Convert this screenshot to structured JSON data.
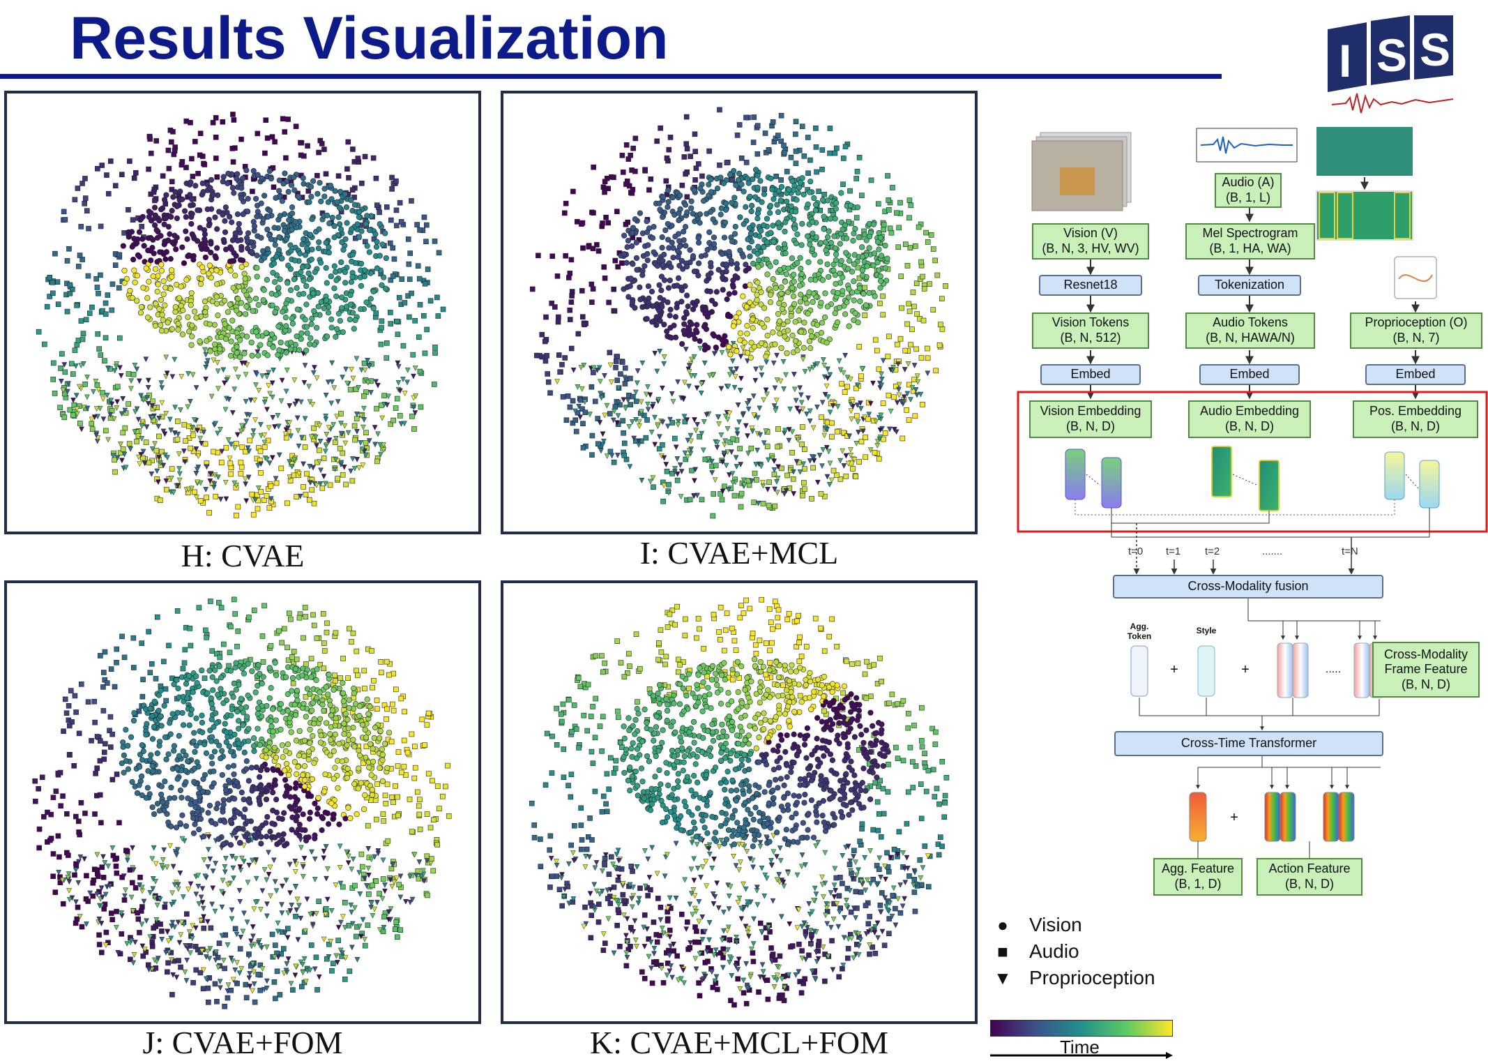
{
  "page_title": "Results Visualization",
  "logo_text": "ISS",
  "panels": [
    {
      "caption": "H: CVAE"
    },
    {
      "caption": "I: CVAE+MCL"
    },
    {
      "caption": "J: CVAE+FOM"
    },
    {
      "caption": "K: CVAE+MCL+FOM"
    }
  ],
  "diagram": {
    "vision_input": "Vision (V)\n(B, N, 3, HV, WV)",
    "audio_input": "Audio (A)\n(B, 1, L)",
    "mel": "Mel Spectrogram\n(B, 1, HA, WA)",
    "resnet": "Resnet18",
    "tokenization": "Tokenization",
    "vision_tokens": "Vision Tokens\n(B, N, 512)",
    "audio_tokens": "Audio Tokens\n(B, N, HAWA/N)",
    "proprio": "Proprioception (O)\n(B, N, 7)",
    "embed": "Embed",
    "vision_embedding": "Vision Embedding\n(B, N, D)",
    "audio_embedding": "Audio Embedding\n(B, N, D)",
    "pos_embedding": "Pos. Embedding\n(B, N, D)",
    "time_labels": [
      "t=0",
      "t=1",
      "t=2",
      ".......",
      "t=N"
    ],
    "cross_modality_fusion": "Cross-Modality fusion",
    "agg_token": "Agg.\nToken",
    "style": "Style",
    "frame_feature": "Cross-Modality\nFrame Feature\n(B, N, D)",
    "cross_time_transformer": "Cross-Time Transformer",
    "agg_feature": "Agg. Feature\n(B, 1, D)",
    "action_feature": "Action Feature\n(B, N, D)",
    "n_label": "N",
    "plus": "+",
    "dots": "....."
  },
  "legend": {
    "items": [
      {
        "symbol": "●",
        "label": "Vision"
      },
      {
        "symbol": "■",
        "label": "Audio"
      },
      {
        "symbol": "▼",
        "label": "Proprioception"
      }
    ],
    "time_label": "Time"
  },
  "colors": {
    "title": "#0d1a8a",
    "viridis": [
      "#440154",
      "#3b528b",
      "#21918c",
      "#5ec962",
      "#fde725"
    ],
    "highlight_box": "#e31a1c"
  }
}
